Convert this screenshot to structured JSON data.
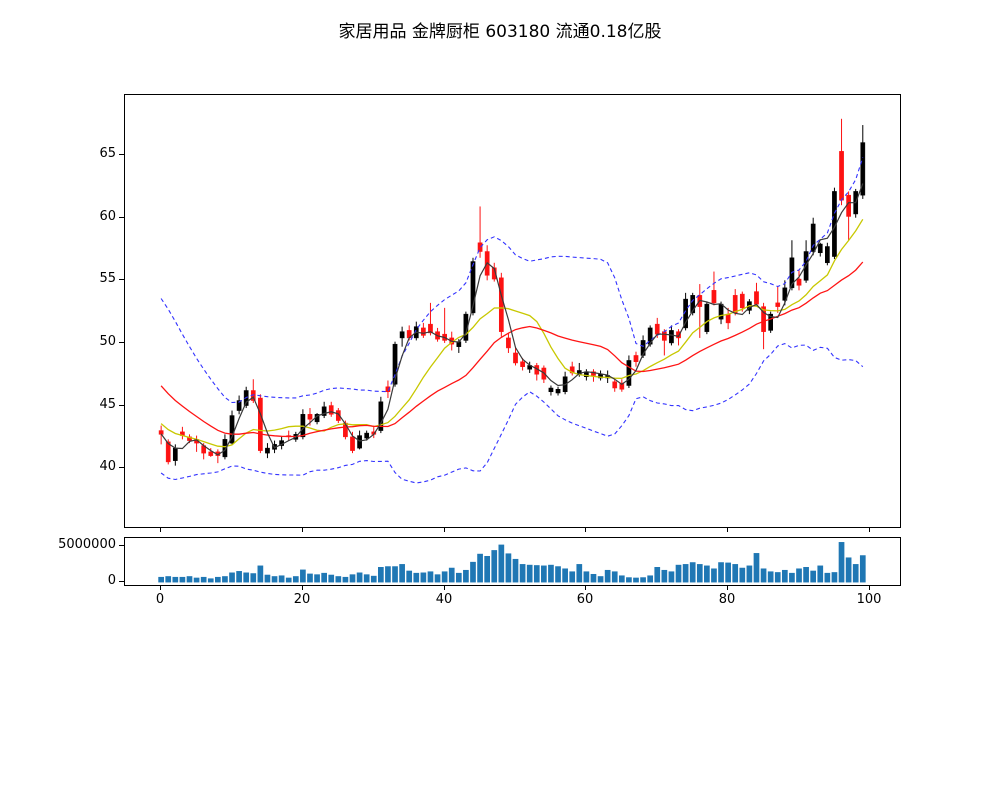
{
  "title": "家居用品 金牌厨柜 603180 流通0.18亿股",
  "chart_data": {
    "type": "candlestick",
    "title": "家居用品 金牌厨柜 603180 流通0.18亿股",
    "panels": [
      "price",
      "volume"
    ],
    "xlabel": "",
    "ylabel": "",
    "x_axis": {
      "ticks": [
        0,
        20,
        40,
        60,
        80,
        100
      ],
      "xlim": [
        -5.1,
        104.25
      ]
    },
    "price_axis": {
      "ticks": [
        40,
        45,
        50,
        55,
        60,
        65
      ],
      "ylim": [
        35.3,
        69.8
      ],
      "grid": false
    },
    "volume_axis": {
      "ticks": [
        {
          "label": "0",
          "value": 0
        },
        {
          "label": "5000000",
          "value": 5000000
        }
      ],
      "ylim": [
        -350000,
        6050000
      ]
    },
    "legend": null,
    "colors": {
      "candle_up": "#000000",
      "candle_down": "#fd1212",
      "ma_short": "#3a3a3a",
      "ma_mid": "#c8c800",
      "ma_long": "#ff1414",
      "bollinger_band": "#3333ff",
      "volume_bar": "#1f77b4",
      "axis": "#000000",
      "background": "#ffffff"
    },
    "indicators": {
      "ma_short_window": 3,
      "ma_mid_window": 10,
      "ma_long_window": 20,
      "bollinger_window": 20,
      "bollinger_k": 2,
      "warmup_closes_estimated": [
        54.0,
        53.2,
        52.4,
        51.6,
        50.8,
        50.0,
        49.2,
        48.4,
        47.6,
        46.8,
        46.0,
        45.3,
        44.7,
        44.2,
        43.8,
        43.4,
        43.1,
        42.9,
        42.8,
        42.7
      ]
    },
    "candles_ohlc": [
      [
        43.0,
        43.4,
        41.9,
        42.7
      ],
      [
        42.1,
        42.3,
        40.3,
        40.5
      ],
      [
        40.6,
        41.9,
        40.2,
        41.6
      ],
      [
        42.9,
        43.3,
        42.3,
        42.6
      ],
      [
        42.5,
        42.7,
        42.0,
        42.2
      ],
      [
        42.3,
        42.6,
        41.3,
        42.0
      ],
      [
        41.8,
        42.0,
        40.7,
        41.2
      ],
      [
        41.3,
        41.6,
        40.9,
        41.0
      ],
      [
        41.3,
        41.5,
        40.4,
        41.0
      ],
      [
        40.9,
        42.7,
        40.7,
        42.3
      ],
      [
        42.0,
        44.6,
        41.9,
        44.2
      ],
      [
        44.6,
        45.8,
        44.3,
        45.4
      ],
      [
        45.0,
        46.5,
        44.8,
        46.2
      ],
      [
        46.2,
        47.1,
        45.2,
        45.4
      ],
      [
        45.6,
        45.9,
        41.2,
        41.4
      ],
      [
        41.2,
        42.0,
        40.8,
        41.6
      ],
      [
        41.5,
        42.2,
        41.2,
        41.9
      ],
      [
        41.8,
        42.5,
        41.5,
        42.2
      ],
      [
        42.6,
        43.0,
        42.2,
        42.5
      ],
      [
        42.3,
        42.9,
        42.1,
        42.7
      ],
      [
        42.5,
        44.7,
        42.3,
        44.3
      ],
      [
        44.3,
        44.8,
        43.4,
        43.9
      ],
      [
        43.7,
        44.4,
        43.5,
        44.3
      ],
      [
        44.2,
        45.3,
        44.0,
        44.9
      ],
      [
        45.0,
        45.3,
        44.1,
        44.3
      ],
      [
        44.6,
        44.8,
        43.6,
        43.8
      ],
      [
        43.6,
        43.8,
        42.3,
        42.5
      ],
      [
        42.5,
        42.9,
        41.2,
        41.4
      ],
      [
        41.6,
        43.0,
        41.5,
        42.6
      ],
      [
        42.4,
        43.0,
        42.2,
        42.8
      ],
      [
        42.9,
        43.3,
        42.4,
        42.7
      ],
      [
        43.0,
        45.7,
        42.8,
        45.3
      ],
      [
        46.5,
        47.0,
        45.6,
        46.1
      ],
      [
        46.7,
        50.1,
        46.5,
        49.9
      ],
      [
        50.4,
        51.3,
        49.7,
        50.9
      ],
      [
        51.0,
        51.4,
        50.2,
        50.4
      ],
      [
        50.4,
        51.7,
        50.2,
        51.3
      ],
      [
        51.2,
        51.6,
        50.4,
        50.6
      ],
      [
        51.5,
        53.2,
        50.6,
        50.8
      ],
      [
        50.9,
        51.2,
        50.1,
        50.3
      ],
      [
        50.7,
        52.8,
        50.0,
        50.2
      ],
      [
        50.4,
        50.9,
        49.4,
        49.9
      ],
      [
        49.7,
        50.3,
        49.2,
        50.1
      ],
      [
        50.2,
        52.5,
        50.0,
        52.3
      ],
      [
        52.4,
        56.8,
        52.2,
        56.5
      ],
      [
        58.0,
        60.9,
        56.8,
        57.3
      ],
      [
        57.3,
        57.8,
        55.0,
        55.4
      ],
      [
        56.0,
        56.4,
        54.9,
        55.1
      ],
      [
        55.2,
        55.6,
        50.5,
        50.9
      ],
      [
        50.4,
        50.8,
        49.2,
        49.6
      ],
      [
        49.2,
        49.6,
        48.2,
        48.4
      ],
      [
        48.5,
        48.8,
        47.8,
        48.1
      ],
      [
        47.9,
        48.5,
        47.6,
        48.2
      ],
      [
        48.2,
        48.4,
        47.0,
        47.5
      ],
      [
        48.0,
        48.2,
        46.8,
        47.1
      ],
      [
        46.1,
        46.6,
        45.8,
        46.4
      ],
      [
        46.0,
        46.5,
        45.8,
        46.3
      ],
      [
        46.1,
        47.7,
        45.9,
        47.3
      ],
      [
        48.1,
        48.5,
        47.4,
        47.6
      ],
      [
        47.5,
        48.4,
        47.3,
        47.8
      ],
      [
        47.3,
        47.9,
        47.0,
        47.7
      ],
      [
        47.7,
        47.9,
        46.9,
        47.4
      ],
      [
        47.2,
        47.8,
        47.0,
        47.5
      ],
      [
        47.2,
        47.8,
        46.8,
        47.4
      ],
      [
        46.9,
        47.1,
        46.1,
        46.4
      ],
      [
        46.8,
        47.1,
        46.1,
        46.3
      ],
      [
        46.6,
        49.0,
        46.4,
        48.6
      ],
      [
        49.0,
        49.3,
        48.1,
        48.5
      ],
      [
        49.0,
        50.6,
        48.8,
        50.2
      ],
      [
        49.9,
        51.4,
        49.7,
        51.2
      ],
      [
        51.5,
        52.0,
        50.4,
        50.7
      ],
      [
        50.9,
        51.1,
        49.0,
        50.2
      ],
      [
        50.0,
        51.4,
        49.8,
        51.0
      ],
      [
        50.9,
        51.1,
        49.8,
        50.4
      ],
      [
        51.2,
        54.0,
        51.0,
        53.5
      ],
      [
        52.4,
        54.0,
        52.2,
        53.8
      ],
      [
        53.8,
        54.7,
        50.4,
        52.9
      ],
      [
        50.9,
        53.3,
        50.7,
        53.1
      ],
      [
        54.2,
        55.7,
        53.0,
        53.2
      ],
      [
        51.9,
        53.3,
        51.5,
        53.1
      ],
      [
        52.3,
        52.8,
        51.1,
        51.6
      ],
      [
        53.8,
        54.3,
        52.2,
        52.4
      ],
      [
        53.9,
        54.1,
        52.5,
        52.8
      ],
      [
        52.6,
        53.5,
        52.3,
        53.3
      ],
      [
        54.1,
        54.8,
        53.0,
        53.1
      ],
      [
        52.9,
        53.2,
        49.5,
        50.9
      ],
      [
        51.0,
        52.5,
        50.8,
        52.3
      ],
      [
        53.2,
        54.5,
        52.4,
        52.9
      ],
      [
        53.4,
        55.0,
        53.0,
        54.4
      ],
      [
        54.4,
        58.2,
        54.2,
        56.8
      ],
      [
        55.1,
        55.8,
        54.2,
        54.6
      ],
      [
        55.0,
        58.2,
        54.8,
        57.3
      ],
      [
        57.3,
        60.0,
        57.0,
        59.5
      ],
      [
        57.2,
        58.0,
        56.9,
        57.9
      ],
      [
        56.4,
        58.0,
        56.2,
        57.7
      ],
      [
        56.9,
        62.4,
        56.7,
        62.1
      ],
      [
        65.3,
        67.9,
        61.0,
        61.4
      ],
      [
        61.8,
        62.1,
        58.2,
        60.1
      ],
      [
        60.3,
        62.3,
        60.0,
        62.1
      ],
      [
        61.8,
        67.4,
        61.5,
        66.0
      ]
    ],
    "volumes": [
      750000,
      850000,
      750000,
      750000,
      850000,
      650000,
      750000,
      550000,
      750000,
      850000,
      1350000,
      1550000,
      1350000,
      1250000,
      2300000,
      1050000,
      850000,
      950000,
      650000,
      850000,
      1750000,
      1200000,
      1100000,
      1300000,
      1050000,
      850000,
      750000,
      1100000,
      1350000,
      1100000,
      900000,
      2100000,
      2200000,
      2200000,
      2500000,
      1600000,
      1300000,
      1350000,
      1500000,
      1100000,
      1500000,
      2000000,
      1300000,
      1700000,
      2800000,
      3900000,
      3600000,
      4400000,
      5150000,
      3950000,
      3200000,
      2500000,
      2400000,
      2350000,
      2300000,
      2400000,
      2200000,
      1900000,
      1500000,
      2500000,
      1500000,
      1150000,
      850000,
      1700000,
      1500000,
      950000,
      700000,
      650000,
      700000,
      950000,
      2100000,
      1700000,
      1500000,
      2400000,
      2500000,
      2750000,
      2500000,
      2300000,
      1900000,
      2750000,
      2700000,
      2500000,
      2000000,
      2300000,
      4000000,
      1900000,
      1500000,
      1400000,
      1700000,
      1300000,
      1900000,
      2100000,
      1600000,
      2300000,
      1300000,
      1400000,
      5500000,
      3400000,
      2500000,
      3700000
    ]
  }
}
